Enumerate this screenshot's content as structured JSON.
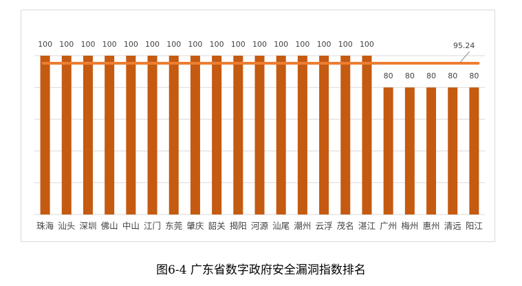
{
  "caption": "图6-4  广东省数字政府安全漏洞指数排名",
  "chart_data": {
    "type": "bar",
    "categories": [
      "珠海",
      "汕头",
      "深圳",
      "佛山",
      "中山",
      "江门",
      "东莞",
      "肇庆",
      "韶关",
      "揭阳",
      "河源",
      "汕尾",
      "潮州",
      "云浮",
      "茂名",
      "湛江",
      "广州",
      "梅州",
      "惠州",
      "清远",
      "阳江"
    ],
    "values": [
      100,
      100,
      100,
      100,
      100,
      100,
      100,
      100,
      100,
      100,
      100,
      100,
      100,
      100,
      100,
      100,
      80,
      80,
      80,
      80,
      80
    ],
    "data_labels": [
      "100",
      "100",
      "100",
      "100",
      "100",
      "100",
      "100",
      "100",
      "100",
      "100",
      "100",
      "100",
      "100",
      "100",
      "100",
      "100",
      "80",
      "80",
      "80",
      "80",
      "80"
    ],
    "average": {
      "value": 95.24,
      "label": "95.24"
    },
    "ylim": [
      0,
      100
    ],
    "grid": true,
    "title": "",
    "xlabel": "",
    "ylabel": "",
    "colors": {
      "bar": "#C55A11",
      "avg_line": "#ED7D31",
      "grid": "#d9d9d9",
      "label": "#404040"
    }
  }
}
